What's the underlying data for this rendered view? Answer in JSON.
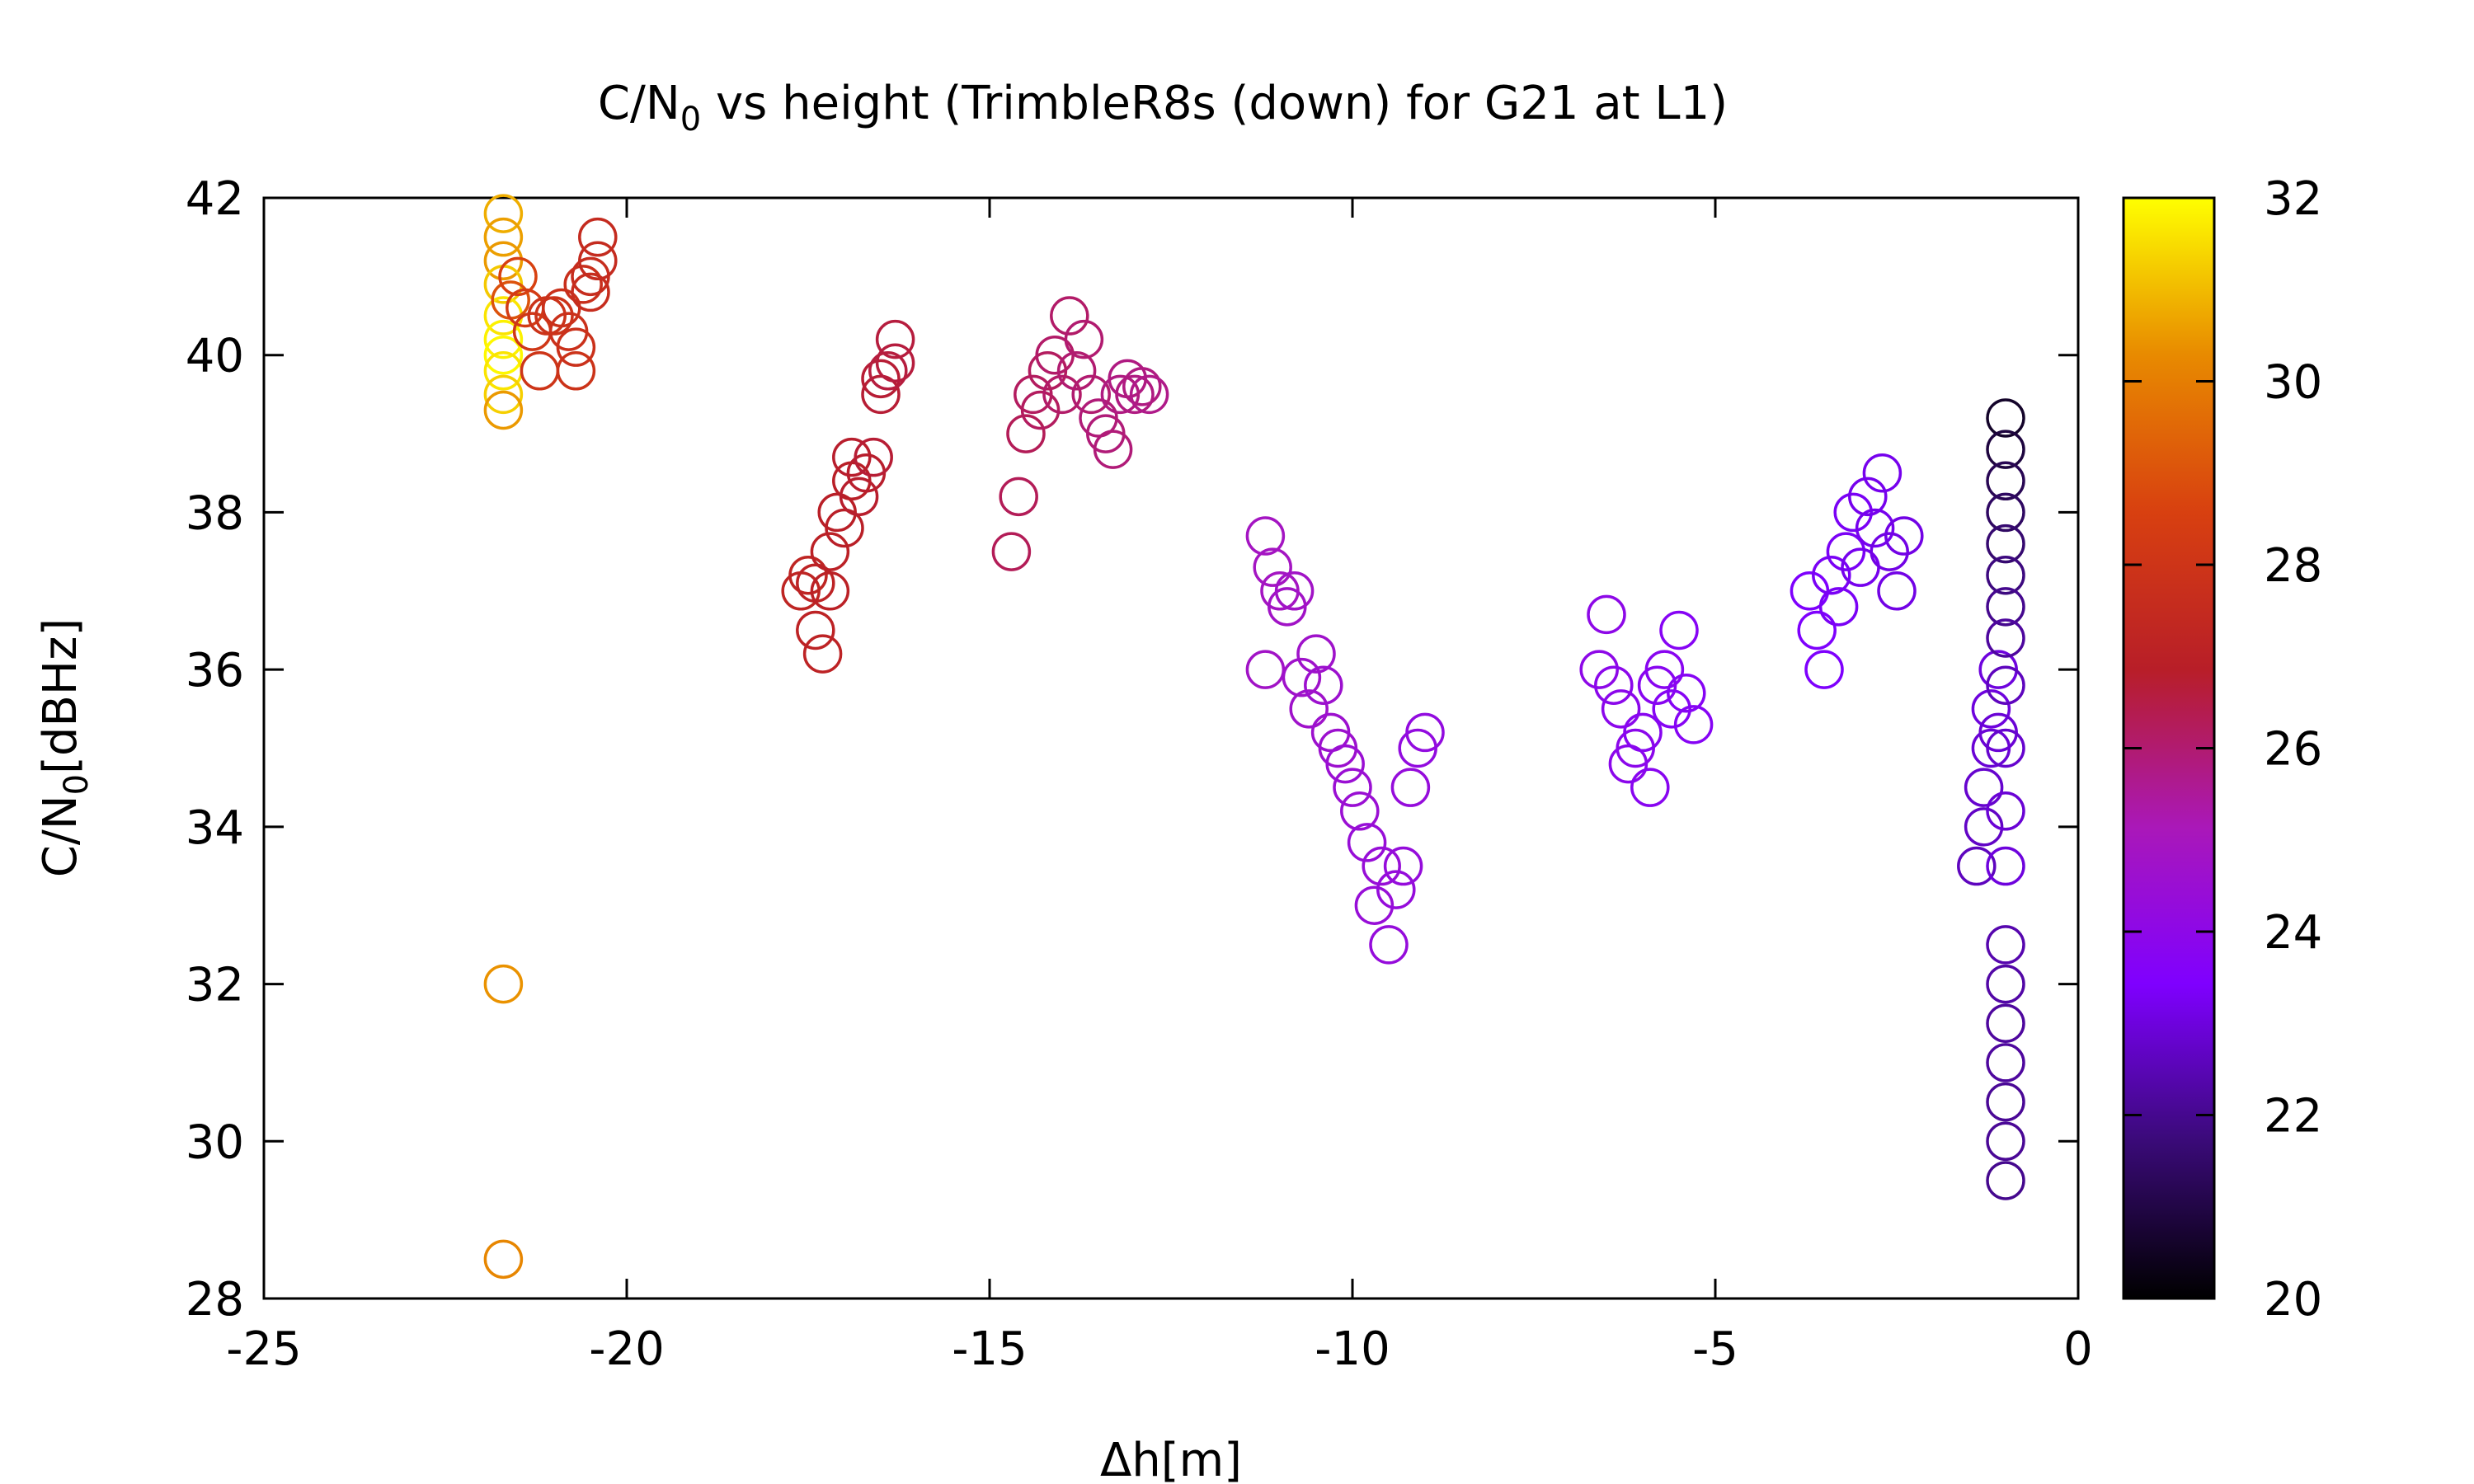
{
  "chart_data": {
    "type": "scatter",
    "title": "C/N₀ vs height (TrimbleR8s (down) for G21 at L1)",
    "title_parts": {
      "a": "C/N",
      "sub": "0",
      "b": " vs height (TrimbleR8s (down) for G21 at L1)"
    },
    "xlabel": "Δh[m]",
    "ylabel_parts": {
      "a": "C/N",
      "sub": "0",
      "b": "[dBHz]"
    },
    "xlim": [
      -25,
      0
    ],
    "ylim": [
      28,
      42
    ],
    "xticks": [
      "-25",
      "-20",
      "-15",
      "-10",
      "-5",
      "0"
    ],
    "yticks": [
      "28",
      "30",
      "32",
      "34",
      "36",
      "38",
      "40",
      "42"
    ],
    "colorbar": {
      "range": [
        20,
        32
      ],
      "ticks": [
        "20",
        "22",
        "24",
        "26",
        "28",
        "30",
        "32"
      ],
      "palette": [
        "#000000",
        "#3a0a78",
        "#7f00ff",
        "#aa18b8",
        "#b81e28",
        "#d84010",
        "#e88a00",
        "#ffff00"
      ]
    },
    "marker": "open-circle",
    "grid": false,
    "legend": "none",
    "points": [
      {
        "x": -21.7,
        "y": 41.8,
        "c": 30.8
      },
      {
        "x": -21.7,
        "y": 41.5,
        "c": 30.6
      },
      {
        "x": -21.7,
        "y": 41.2,
        "c": 30.5
      },
      {
        "x": -21.7,
        "y": 40.9,
        "c": 31.2
      },
      {
        "x": -21.7,
        "y": 40.5,
        "c": 31.6
      },
      {
        "x": -21.7,
        "y": 40.2,
        "c": 31.8
      },
      {
        "x": -21.7,
        "y": 40.0,
        "c": 31.9
      },
      {
        "x": -21.7,
        "y": 39.8,
        "c": 31.6
      },
      {
        "x": -21.7,
        "y": 39.5,
        "c": 31.3
      },
      {
        "x": -21.7,
        "y": 39.3,
        "c": 30.5
      },
      {
        "x": -21.7,
        "y": 32.0,
        "c": 30.4
      },
      {
        "x": -21.7,
        "y": 28.5,
        "c": 30.2
      },
      {
        "x": -21.6,
        "y": 40.7,
        "c": 29.0
      },
      {
        "x": -21.5,
        "y": 41.0,
        "c": 28.6
      },
      {
        "x": -21.4,
        "y": 40.6,
        "c": 28.3
      },
      {
        "x": -21.3,
        "y": 40.3,
        "c": 28.1
      },
      {
        "x": -21.2,
        "y": 39.8,
        "c": 28.0
      },
      {
        "x": -21.1,
        "y": 40.5,
        "c": 27.9
      },
      {
        "x": -21.0,
        "y": 40.5,
        "c": 27.9
      },
      {
        "x": -20.9,
        "y": 40.6,
        "c": 27.8
      },
      {
        "x": -20.8,
        "y": 40.3,
        "c": 27.8
      },
      {
        "x": -20.7,
        "y": 39.8,
        "c": 27.9
      },
      {
        "x": -20.7,
        "y": 40.1,
        "c": 27.8
      },
      {
        "x": -20.6,
        "y": 40.9,
        "c": 27.7
      },
      {
        "x": -20.5,
        "y": 41.0,
        "c": 27.6
      },
      {
        "x": -20.5,
        "y": 40.8,
        "c": 27.6
      },
      {
        "x": -20.4,
        "y": 41.5,
        "c": 27.5
      },
      {
        "x": -20.4,
        "y": 41.2,
        "c": 27.5
      },
      {
        "x": -17.6,
        "y": 37.0,
        "c": 27.2
      },
      {
        "x": -17.5,
        "y": 37.2,
        "c": 27.2
      },
      {
        "x": -17.4,
        "y": 37.1,
        "c": 27.1
      },
      {
        "x": -17.4,
        "y": 36.5,
        "c": 27.1
      },
      {
        "x": -17.3,
        "y": 36.2,
        "c": 27.1
      },
      {
        "x": -17.2,
        "y": 37.0,
        "c": 27.0
      },
      {
        "x": -17.2,
        "y": 37.5,
        "c": 27.0
      },
      {
        "x": -17.1,
        "y": 38.0,
        "c": 26.9
      },
      {
        "x": -17.0,
        "y": 37.8,
        "c": 26.9
      },
      {
        "x": -16.9,
        "y": 38.4,
        "c": 26.9
      },
      {
        "x": -16.9,
        "y": 38.7,
        "c": 26.8
      },
      {
        "x": -16.8,
        "y": 38.2,
        "c": 26.8
      },
      {
        "x": -16.7,
        "y": 38.5,
        "c": 26.8
      },
      {
        "x": -16.6,
        "y": 38.7,
        "c": 26.7
      },
      {
        "x": -16.5,
        "y": 39.5,
        "c": 26.7
      },
      {
        "x": -16.5,
        "y": 39.7,
        "c": 26.7
      },
      {
        "x": -16.4,
        "y": 39.8,
        "c": 26.6
      },
      {
        "x": -16.3,
        "y": 40.2,
        "c": 26.6
      },
      {
        "x": -16.3,
        "y": 39.9,
        "c": 26.6
      },
      {
        "x": -14.7,
        "y": 37.5,
        "c": 26.3
      },
      {
        "x": -14.6,
        "y": 38.2,
        "c": 26.3
      },
      {
        "x": -14.5,
        "y": 39.0,
        "c": 26.3
      },
      {
        "x": -14.4,
        "y": 39.5,
        "c": 26.2
      },
      {
        "x": -14.3,
        "y": 39.3,
        "c": 26.2
      },
      {
        "x": -14.2,
        "y": 39.8,
        "c": 26.2
      },
      {
        "x": -14.1,
        "y": 40.0,
        "c": 26.1
      },
      {
        "x": -14.0,
        "y": 39.5,
        "c": 26.1
      },
      {
        "x": -13.9,
        "y": 40.5,
        "c": 26.1
      },
      {
        "x": -13.8,
        "y": 39.8,
        "c": 26.0
      },
      {
        "x": -13.7,
        "y": 40.2,
        "c": 26.0
      },
      {
        "x": -13.6,
        "y": 39.5,
        "c": 26.0
      },
      {
        "x": -13.5,
        "y": 39.2,
        "c": 25.9
      },
      {
        "x": -13.4,
        "y": 39.0,
        "c": 25.9
      },
      {
        "x": -13.3,
        "y": 38.8,
        "c": 25.9
      },
      {
        "x": -13.2,
        "y": 39.5,
        "c": 25.8
      },
      {
        "x": -13.1,
        "y": 39.7,
        "c": 25.8
      },
      {
        "x": -13.0,
        "y": 39.5,
        "c": 25.8
      },
      {
        "x": -12.9,
        "y": 39.6,
        "c": 25.8
      },
      {
        "x": -12.8,
        "y": 39.5,
        "c": 25.7
      },
      {
        "x": -11.2,
        "y": 37.7,
        "c": 24.9
      },
      {
        "x": -11.1,
        "y": 37.3,
        "c": 24.9
      },
      {
        "x": -11.2,
        "y": 36.0,
        "c": 24.8
      },
      {
        "x": -11.0,
        "y": 37.0,
        "c": 24.9
      },
      {
        "x": -10.9,
        "y": 36.8,
        "c": 24.8
      },
      {
        "x": -10.8,
        "y": 37.0,
        "c": 24.8
      },
      {
        "x": -10.7,
        "y": 35.9,
        "c": 24.7
      },
      {
        "x": -10.6,
        "y": 35.5,
        "c": 24.7
      },
      {
        "x": -10.5,
        "y": 36.2,
        "c": 24.7
      },
      {
        "x": -10.4,
        "y": 35.8,
        "c": 24.6
      },
      {
        "x": -10.3,
        "y": 35.2,
        "c": 24.6
      },
      {
        "x": -10.2,
        "y": 35.0,
        "c": 24.6
      },
      {
        "x": -10.1,
        "y": 34.8,
        "c": 24.5
      },
      {
        "x": -10.0,
        "y": 34.5,
        "c": 24.5
      },
      {
        "x": -9.9,
        "y": 34.2,
        "c": 24.5
      },
      {
        "x": -9.8,
        "y": 33.8,
        "c": 24.4
      },
      {
        "x": -9.7,
        "y": 33.0,
        "c": 24.4
      },
      {
        "x": -9.6,
        "y": 33.5,
        "c": 24.4
      },
      {
        "x": -9.5,
        "y": 32.5,
        "c": 24.3
      },
      {
        "x": -9.4,
        "y": 33.2,
        "c": 24.3
      },
      {
        "x": -9.3,
        "y": 33.5,
        "c": 24.3
      },
      {
        "x": -9.2,
        "y": 34.5,
        "c": 24.3
      },
      {
        "x": -9.1,
        "y": 35.0,
        "c": 24.2
      },
      {
        "x": -9.0,
        "y": 35.2,
        "c": 24.2
      },
      {
        "x": -6.6,
        "y": 36.0,
        "c": 24.0
      },
      {
        "x": -6.5,
        "y": 36.7,
        "c": 24.0
      },
      {
        "x": -6.4,
        "y": 35.8,
        "c": 23.9
      },
      {
        "x": -6.3,
        "y": 35.5,
        "c": 23.9
      },
      {
        "x": -6.2,
        "y": 34.8,
        "c": 23.9
      },
      {
        "x": -6.1,
        "y": 35.0,
        "c": 23.9
      },
      {
        "x": -6.0,
        "y": 35.2,
        "c": 23.8
      },
      {
        "x": -5.9,
        "y": 34.5,
        "c": 23.8
      },
      {
        "x": -5.8,
        "y": 35.8,
        "c": 23.8
      },
      {
        "x": -5.7,
        "y": 36.0,
        "c": 23.8
      },
      {
        "x": -5.6,
        "y": 35.5,
        "c": 23.7
      },
      {
        "x": -5.5,
        "y": 36.5,
        "c": 23.7
      },
      {
        "x": -5.4,
        "y": 35.7,
        "c": 23.7
      },
      {
        "x": -5.3,
        "y": 35.3,
        "c": 23.7
      },
      {
        "x": -3.7,
        "y": 37.0,
        "c": 23.4
      },
      {
        "x": -3.6,
        "y": 36.5,
        "c": 23.4
      },
      {
        "x": -3.5,
        "y": 36.0,
        "c": 23.4
      },
      {
        "x": -3.4,
        "y": 37.2,
        "c": 23.3
      },
      {
        "x": -3.3,
        "y": 36.8,
        "c": 23.3
      },
      {
        "x": -3.2,
        "y": 37.5,
        "c": 23.3
      },
      {
        "x": -3.1,
        "y": 38.0,
        "c": 23.3
      },
      {
        "x": -3.0,
        "y": 37.3,
        "c": 23.2
      },
      {
        "x": -2.9,
        "y": 38.2,
        "c": 23.2
      },
      {
        "x": -2.8,
        "y": 37.8,
        "c": 23.2
      },
      {
        "x": -2.7,
        "y": 38.5,
        "c": 23.2
      },
      {
        "x": -2.6,
        "y": 37.5,
        "c": 23.1
      },
      {
        "x": -2.5,
        "y": 37.0,
        "c": 23.1
      },
      {
        "x": -2.4,
        "y": 37.7,
        "c": 23.1
      },
      {
        "x": -1.4,
        "y": 33.5,
        "c": 22.6
      },
      {
        "x": -1.3,
        "y": 34.0,
        "c": 22.7
      },
      {
        "x": -1.3,
        "y": 34.5,
        "c": 22.8
      },
      {
        "x": -1.2,
        "y": 35.0,
        "c": 22.9
      },
      {
        "x": -1.2,
        "y": 35.5,
        "c": 23.0
      },
      {
        "x": -1.1,
        "y": 36.0,
        "c": 23.0
      },
      {
        "x": -1.1,
        "y": 35.2,
        "c": 22.9
      },
      {
        "x": -1.0,
        "y": 39.2,
        "c": 20.6
      },
      {
        "x": -1.0,
        "y": 38.8,
        "c": 20.9
      },
      {
        "x": -1.0,
        "y": 38.4,
        "c": 21.2
      },
      {
        "x": -1.0,
        "y": 38.0,
        "c": 21.4
      },
      {
        "x": -1.0,
        "y": 37.6,
        "c": 21.6
      },
      {
        "x": -1.0,
        "y": 37.2,
        "c": 21.8
      },
      {
        "x": -1.0,
        "y": 36.8,
        "c": 22.0
      },
      {
        "x": -1.0,
        "y": 36.4,
        "c": 22.2
      },
      {
        "x": -1.0,
        "y": 35.8,
        "c": 22.6
      },
      {
        "x": -1.0,
        "y": 35.0,
        "c": 22.8
      },
      {
        "x": -1.0,
        "y": 34.2,
        "c": 22.9
      },
      {
        "x": -1.0,
        "y": 33.5,
        "c": 23.0
      },
      {
        "x": -1.0,
        "y": 32.5,
        "c": 22.4
      },
      {
        "x": -1.0,
        "y": 32.0,
        "c": 22.3
      },
      {
        "x": -1.0,
        "y": 31.5,
        "c": 22.2
      },
      {
        "x": -1.0,
        "y": 31.0,
        "c": 22.2
      },
      {
        "x": -1.0,
        "y": 30.5,
        "c": 22.1
      },
      {
        "x": -1.0,
        "y": 30.0,
        "c": 22.1
      },
      {
        "x": -1.0,
        "y": 29.5,
        "c": 22.0
      }
    ]
  }
}
